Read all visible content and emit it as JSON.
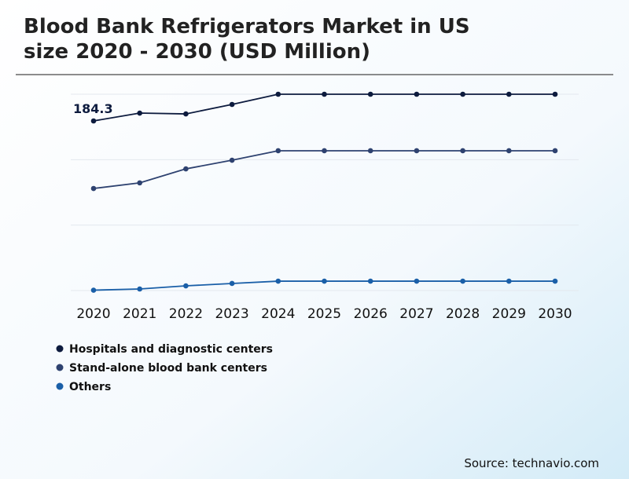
{
  "chart_data": {
    "type": "line",
    "title": [
      "Blood Bank Refrigerators Market in US",
      "size 2020 - 2030 (USD Million)"
    ],
    "source": "Source: technavio.com",
    "categories": [
      "2020",
      "2021",
      "2022",
      "2023",
      "2024",
      "2025",
      "2026",
      "2027",
      "2028",
      "2029",
      "2030"
    ],
    "series": [
      {
        "name": "Hospitals and diagnostic centers",
        "color": "#0d1b3e",
        "values": [
          184.3,
          192.8,
          191.9,
          202.2,
          213.3,
          213.3,
          213.3,
          213.3,
          213.3,
          213.3,
          213.3
        ]
      },
      {
        "name": "Stand-alone blood bank centers",
        "color": "#2e4270",
        "values": [
          110.9,
          117.0,
          132.2,
          141.6,
          151.9,
          151.9,
          151.9,
          151.9,
          151.9,
          151.9,
          151.9
        ]
      },
      {
        "name": "Others",
        "color": "#1a5fa8",
        "values": [
          0.4,
          1.7,
          5.1,
          7.7,
          10.2,
          10.2,
          10.2,
          10.2,
          10.2,
          10.2,
          10.2
        ]
      }
    ],
    "ylim": [
      0,
      213.3
    ],
    "yticks": [
      0,
      71.1,
      142.2,
      213.3
    ],
    "grid": true
  }
}
